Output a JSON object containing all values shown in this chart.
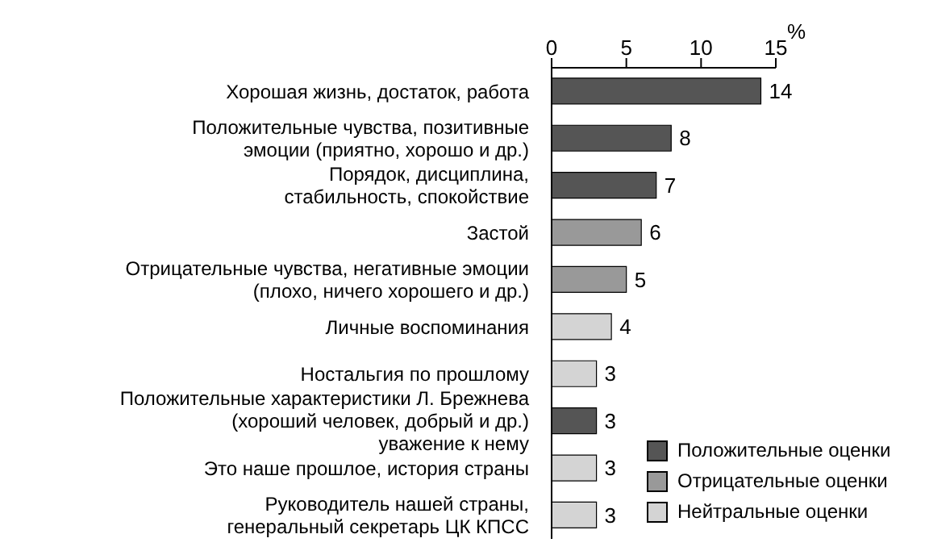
{
  "chart_data": {
    "type": "bar",
    "orientation": "horizontal",
    "stacked": true,
    "xlabel": "%",
    "categories": [
      "Хорошая жизнь, достаток, работа",
      "Положительные чувства, позитивные\nэмоции (приятно, хорошо и др.)",
      "Порядок, дисциплина,\nстабильность, спокойствие",
      "Застой",
      "Отрицательные чувства, негативные эмоции\n(плохо, ничего хорошего и др.)",
      "Личные воспоминания",
      "Ностальгия по прошлому",
      "Положительные характеристики Л. Брежнева\n(хороший человек, добрый и др.)\nуважение к нему",
      "Это наше прошлое, история страны",
      "Руководитель нашей страны,\nгенеральный секретарь ЦК КПСС"
    ],
    "series": [
      {
        "name": "Положительные оценки",
        "color": "#555555",
        "values": [
          14,
          8,
          7,
          null,
          null,
          null,
          null,
          3,
          null,
          null
        ]
      },
      {
        "name": "Отрицательные оценки",
        "color": "#999999",
        "values": [
          null,
          null,
          null,
          6,
          5,
          null,
          null,
          null,
          null,
          null
        ]
      },
      {
        "name": "Нейтральные оценки",
        "color": "#d4d4d4",
        "values": [
          null,
          null,
          null,
          null,
          null,
          4,
          3,
          null,
          3,
          3
        ]
      }
    ],
    "xlim": [
      0,
      15
    ],
    "xticks": [
      0,
      5,
      10,
      15
    ],
    "data_labels": true,
    "legend": "bottom right"
  }
}
